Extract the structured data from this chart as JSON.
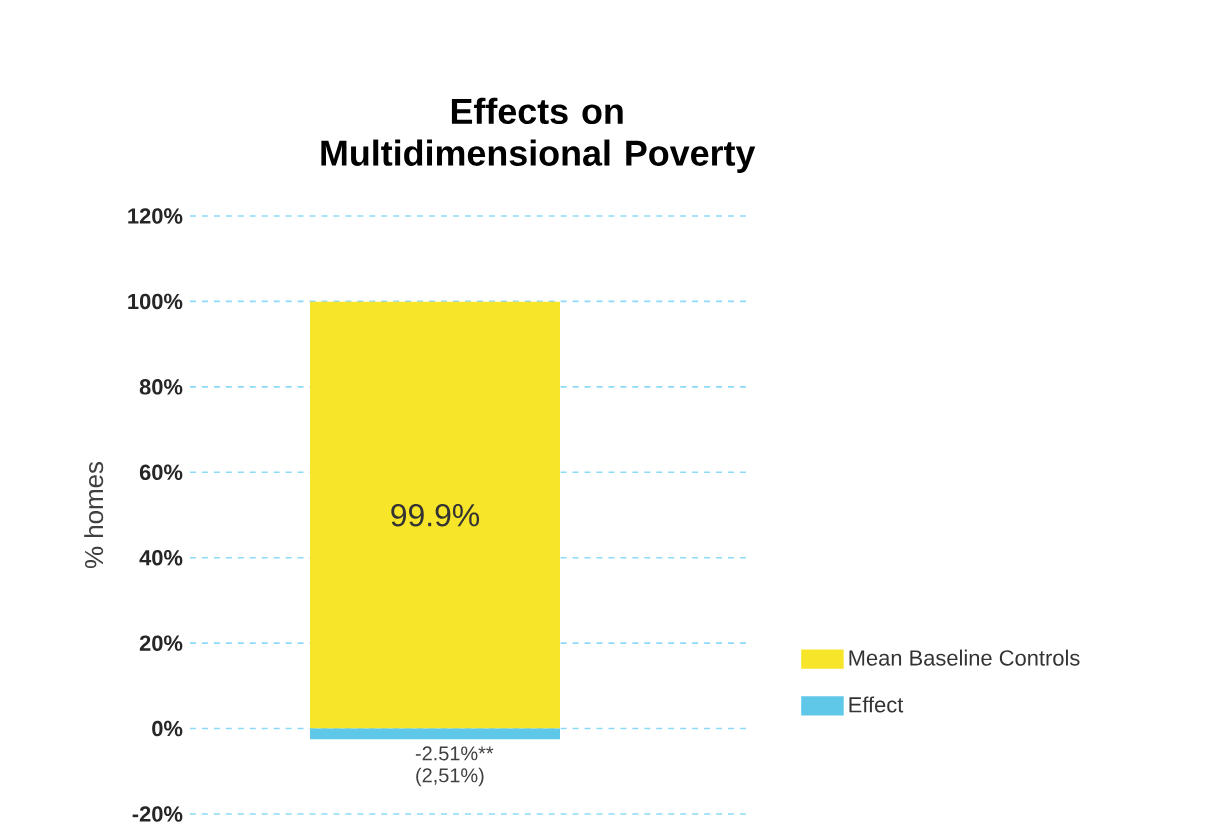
{
  "chart_data": {
    "type": "bar",
    "title": "Effects on Multidimensional Poverty",
    "ylabel": "% homes",
    "categories": [
      null
    ],
    "stacked": true,
    "series": [
      {
        "name": "Mean Baseline Controls",
        "color": "#f7e52a",
        "values": [
          99.9
        ],
        "value_labels": [
          "99.9%"
        ]
      },
      {
        "name": "Effect",
        "color": "#5fc8e8",
        "values": [
          -2.51
        ],
        "value_labels": [
          "-2.51%** (2,51%)"
        ]
      }
    ],
    "ylim": [
      -20,
      120
    ],
    "yticks": [
      {
        "value": -20,
        "label": "-20%"
      },
      {
        "value": 0,
        "label": "0%"
      },
      {
        "value": 20,
        "label": "20%"
      },
      {
        "value": 40,
        "label": "40%"
      },
      {
        "value": 60,
        "label": "60%"
      },
      {
        "value": 80,
        "label": "80%"
      },
      {
        "value": 100,
        "label": "100%"
      },
      {
        "value": 120,
        "label": "120%"
      }
    ],
    "grid": "y",
    "legend": "right"
  }
}
